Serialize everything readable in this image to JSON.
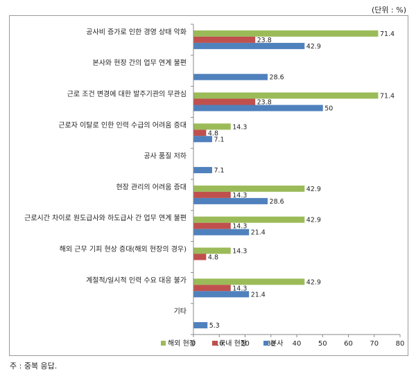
{
  "unit_label": "(단위 : %)",
  "footnote": "주 : 중복 응답.",
  "chart_data": {
    "type": "bar",
    "orientation": "horizontal",
    "categories": [
      "공사비 증가로 인한 경영 상태 악화",
      "본사와 현장 간의 업무 연계 불편",
      "근로 조건 변경에 대한 발주기관의 무관심",
      "근로자 이탈로 인한 인력 수급의 어려움 증대",
      "공사 품질 저하",
      "현장 관리의 어려움 증대",
      "근로시간 차이로 원도급사와 하도급사 간 업무 연계 불편",
      "해외 근무 기피 현상 증대(해외 현장의 경우)",
      "계절적/일시적 인력 수요 대응 불가",
      "기타"
    ],
    "series": [
      {
        "name": "해외 현장",
        "color": "#9bbb59",
        "values": [
          71.4,
          null,
          71.4,
          14.3,
          null,
          42.9,
          42.9,
          14.3,
          42.9,
          null
        ]
      },
      {
        "name": "국내 현장",
        "color": "#c0504d",
        "values": [
          23.8,
          null,
          23.8,
          4.8,
          null,
          14.3,
          14.3,
          4.8,
          14.3,
          null
        ]
      },
      {
        "name": "본사",
        "color": "#4f81bd",
        "values": [
          42.9,
          28.6,
          50,
          7.1,
          7.1,
          28.6,
          21.4,
          null,
          21.4,
          5.3
        ]
      }
    ],
    "xlim": [
      0,
      80
    ],
    "xticks": [
      0,
      10,
      20,
      30,
      40,
      50,
      60,
      70,
      80
    ],
    "grid": false,
    "legend_position": "bottom"
  }
}
